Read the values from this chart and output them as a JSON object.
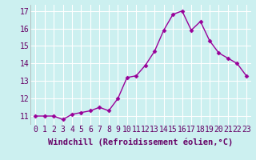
{
  "x": [
    0,
    1,
    2,
    3,
    4,
    5,
    6,
    7,
    8,
    9,
    10,
    11,
    12,
    13,
    14,
    15,
    16,
    17,
    18,
    19,
    20,
    21,
    22,
    23
  ],
  "y": [
    11.0,
    11.0,
    11.0,
    10.8,
    11.1,
    11.2,
    11.3,
    11.5,
    11.3,
    12.0,
    13.2,
    13.3,
    13.9,
    14.7,
    15.9,
    16.8,
    17.0,
    15.9,
    16.4,
    15.3,
    14.6,
    14.3,
    14.0,
    13.3
  ],
  "line_color": "#990099",
  "marker": "D",
  "marker_size": 2.5,
  "bg_color": "#ccf0f0",
  "grid_color": "#ffffff",
  "xlabel": "Windchill (Refroidissement éolien,°C)",
  "xlim": [
    -0.5,
    23.5
  ],
  "ylim": [
    10.5,
    17.35
  ],
  "yticks": [
    11,
    12,
    13,
    14,
    15,
    16,
    17
  ],
  "xtick_labels": [
    "0",
    "1",
    "2",
    "3",
    "4",
    "5",
    "6",
    "7",
    "8",
    "9",
    "10",
    "11",
    "12",
    "13",
    "14",
    "15",
    "16",
    "17",
    "18",
    "19",
    "20",
    "21",
    "22",
    "23"
  ],
  "xlabel_fontsize": 7.5,
  "tick_fontsize": 7,
  "line_width": 1.0,
  "tick_color": "#660066",
  "label_color": "#660066"
}
